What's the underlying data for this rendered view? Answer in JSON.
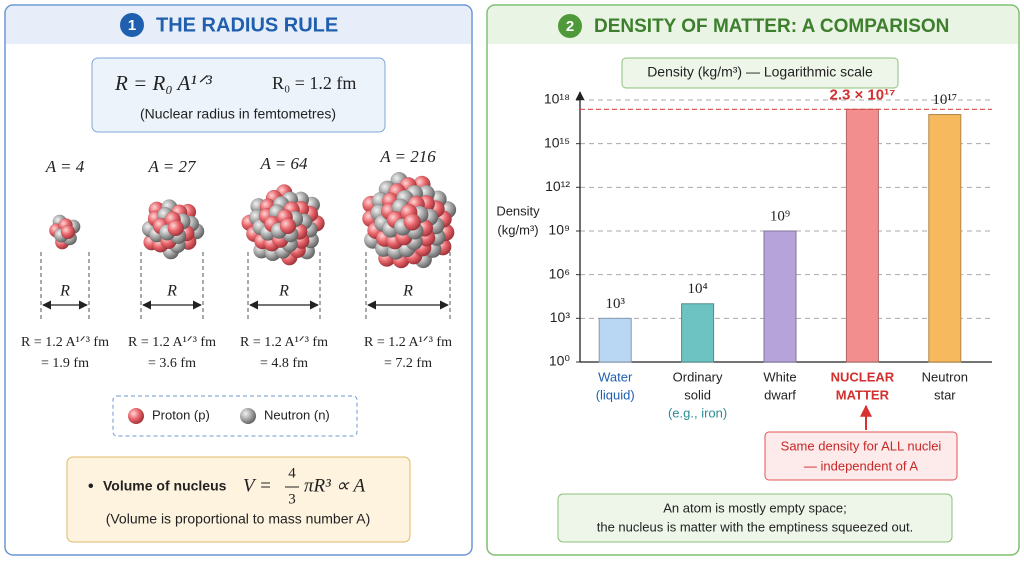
{
  "left": {
    "number": "1",
    "title": "THE RADIUS RULE",
    "formula": "R = R₀ A¹ᐟ³",
    "constant": "R₀ = 1.2 fm",
    "formula_note": "(Nuclear radius in femtometres)",
    "nuclei": [
      {
        "label": "A = 4",
        "radius": "R",
        "formula": "R = 1.2 A¹ᐟ³ fm",
        "result": "= 1.9 fm"
      },
      {
        "label": "A = 27",
        "radius": "R",
        "formula": "R = 1.2 A¹ᐟ³ fm",
        "result": "= 3.6 fm"
      },
      {
        "label": "A = 64",
        "radius": "R",
        "formula": "R = 1.2 A¹ᐟ³ fm",
        "result": "= 4.8 fm"
      },
      {
        "label": "A = 216",
        "radius": "R",
        "formula": "R = 1.2 A¹ᐟ³ fm",
        "result": "= 7.2 fm"
      }
    ],
    "legend": [
      "Proton (p)",
      "Neutron (n)"
    ],
    "volume": {
      "bullet": "•",
      "label": "Volume of nucleus",
      "lhs": "V =",
      "numerator": "4",
      "denominator": "3",
      "rhs": "πR³ ∝ A",
      "note": "(Volume is proportional to mass number A)"
    }
  },
  "right": {
    "number": "2",
    "title": "DENSITY OF MATTER: A COMPARISON"
  },
  "chart_data": {
    "type": "bar",
    "title": "Density (kg/m³) — Logarithmic scale",
    "y_label": [
      "Density",
      "(kg/m³)"
    ],
    "categories": [
      [
        "Water",
        "(liquid)"
      ],
      [
        "Ordinary",
        "solid",
        "(e.g., iron)"
      ],
      [
        "White",
        "dwarf"
      ],
      [
        "NUCLEAR",
        "MATTER"
      ],
      [
        "Neutron",
        "star"
      ]
    ],
    "values": [
      1000,
      10000,
      1000000000,
      230000000000000000,
      100000000000000000
    ],
    "value_labels": [
      "10³",
      "10⁴",
      "10⁹",
      "2.3 × 10¹⁷",
      "10¹⁷"
    ],
    "colors": [
      "#b9d6f2",
      "#6cc3c1",
      "#b6a3d9",
      "#f38e8e",
      "#f6b95e"
    ],
    "log_scale": true,
    "ylim": [
      1,
      1000000000000000000
    ],
    "yticks": [
      {
        "value": 1,
        "label": "10⁰"
      },
      {
        "value": 1000,
        "label": "10³"
      },
      {
        "value": 1000000,
        "label": "10⁶"
      },
      {
        "value": 1000000000,
        "label": "10⁹"
      },
      {
        "value": 1000000000000,
        "label": "10¹²"
      },
      {
        "value": 1000000000000000,
        "label": "10¹⁵"
      },
      {
        "value": 1000000000000000000,
        "label": "10¹⁸"
      }
    ],
    "grid": true,
    "annotation": [
      "Same density for ALL nuclei",
      "— independent of A"
    ],
    "note": [
      "An atom is mostly empty space;",
      "the nucleus is matter with the emptiness squeezed out."
    ]
  }
}
